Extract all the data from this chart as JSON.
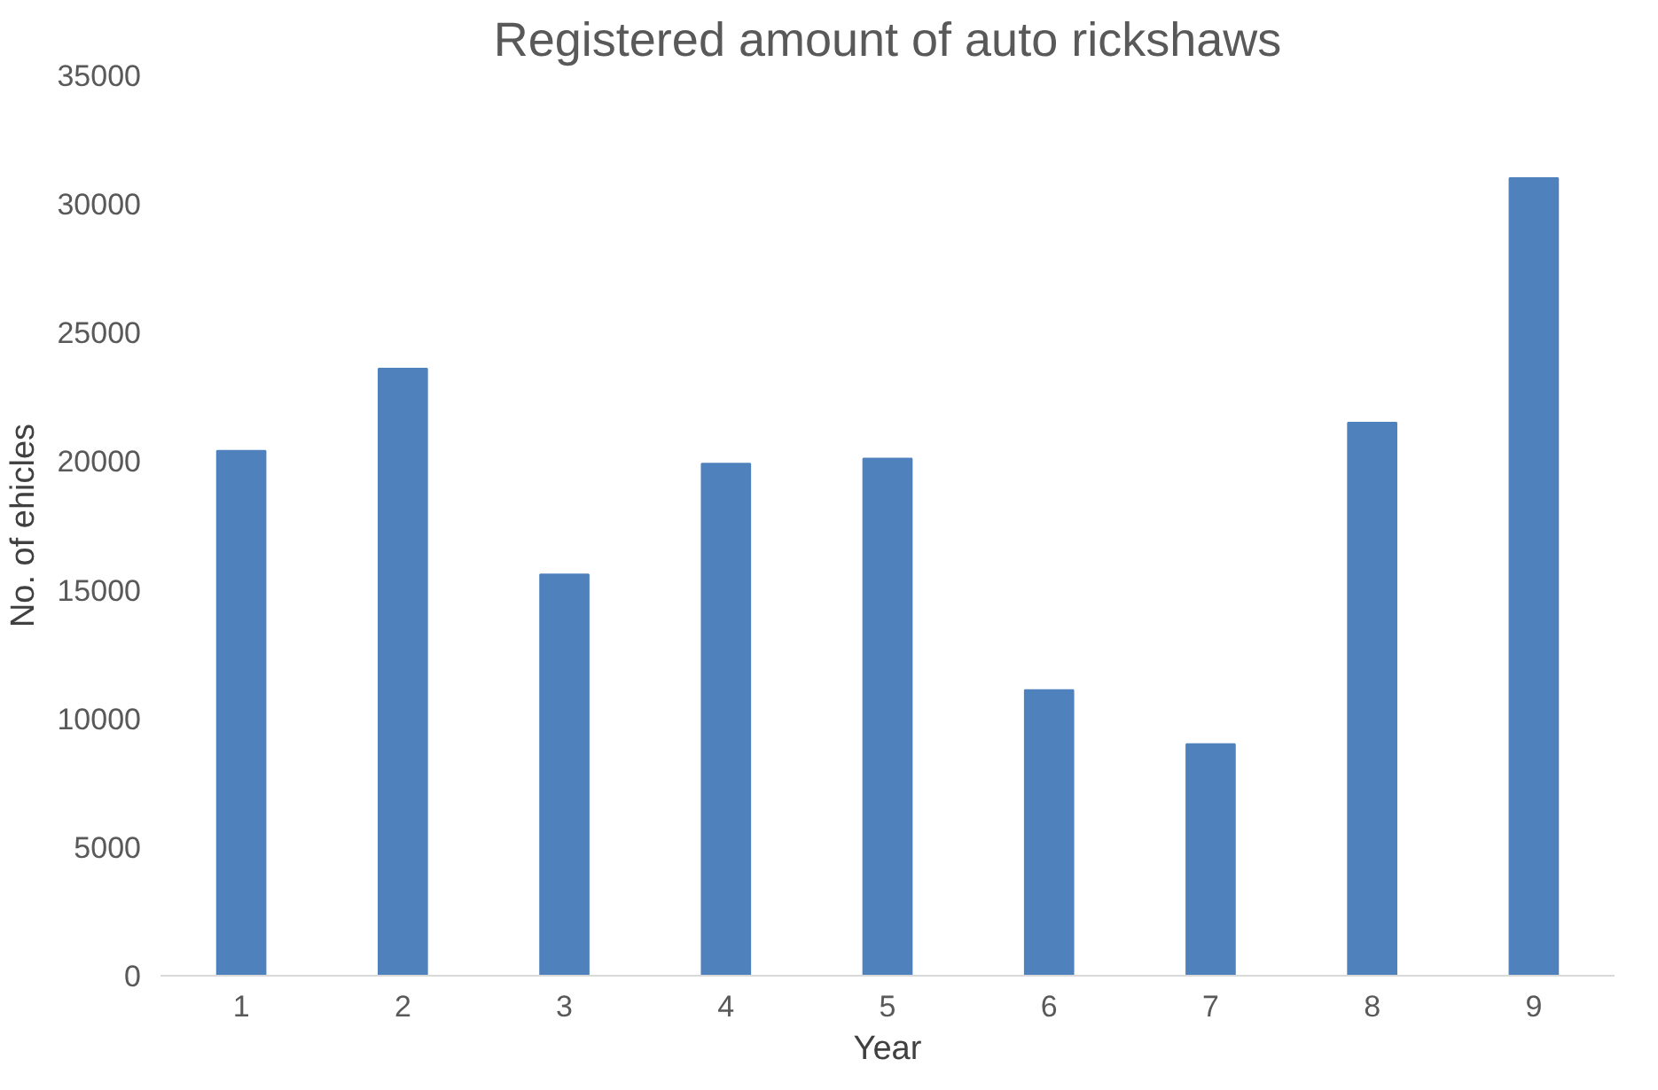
{
  "chart_data": {
    "type": "bar",
    "title": "Registered amount of auto rickshaws",
    "xlabel": "Year",
    "ylabel": "No. of ehicles",
    "categories": [
      "1",
      "2",
      "3",
      "4",
      "5",
      "6",
      "7",
      "8",
      "9"
    ],
    "values": [
      20400,
      23600,
      15600,
      19900,
      20100,
      11100,
      9000,
      21500,
      31000
    ],
    "color": "#4f81bd",
    "ylim": [
      0,
      35000
    ],
    "yticks": [
      0,
      5000,
      10000,
      15000,
      20000,
      25000,
      30000,
      35000
    ],
    "grid": false
  }
}
